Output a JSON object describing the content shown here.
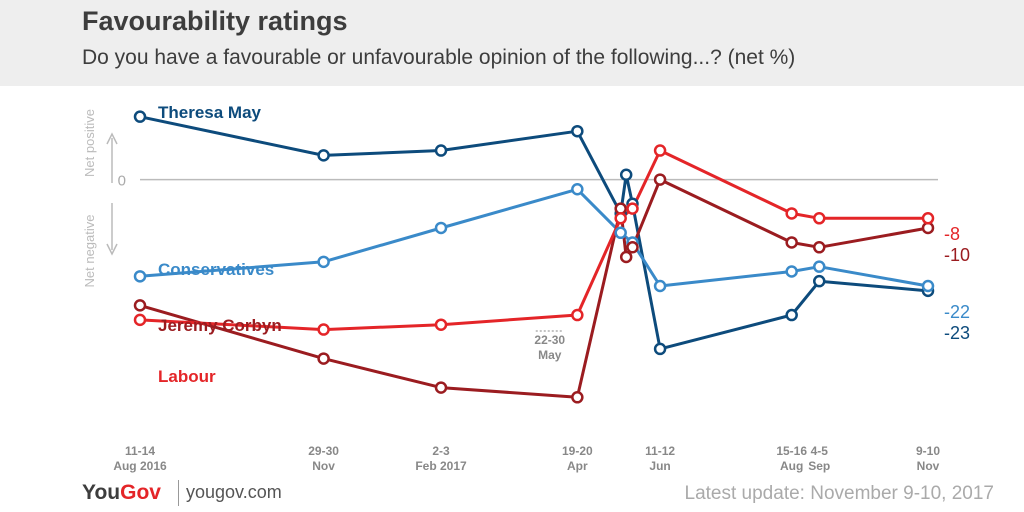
{
  "title": "Favourability ratings",
  "subtitle": "Do you have a favourable or unfavourable opinion of the following...? (net %)",
  "axis_labels": {
    "positive": "Net positive",
    "negative": "Net negative",
    "zero": "0"
  },
  "footer": {
    "brand_you": "You",
    "brand_gov": "Gov",
    "site": "yougov.com",
    "update": "Latest update: November 9-10, 2017"
  },
  "colors": {
    "theresa_may": "#0d4b7c",
    "conservatives": "#3a8ac9",
    "jeremy_corbyn": "#9b1c20",
    "labour": "#e42528",
    "axis": "#bbbbbb"
  },
  "chart_data": {
    "type": "line",
    "ylabel": "",
    "ylim": [
      -53,
      15
    ],
    "grid": false,
    "legend": "inline labels at left",
    "annotations": [
      {
        "lines": [
          "22-30",
          "May"
        ],
        "x": 0.52
      }
    ],
    "x_ticks": [
      {
        "lines": [
          "11-14",
          "Aug 2016"
        ],
        "x": 0
      },
      {
        "lines": [
          "29-30",
          "Nov"
        ],
        "x": 0.233
      },
      {
        "lines": [
          "2-3",
          "Feb 2017"
        ],
        "x": 0.382
      },
      {
        "lines": [
          "19-20",
          "Apr"
        ],
        "x": 0.555
      },
      {
        "lines": [
          "11-12",
          "Jun"
        ],
        "x": 0.66
      },
      {
        "lines": [
          "15-16",
          "Aug"
        ],
        "x": 0.827
      },
      {
        "lines": [
          "4-5",
          "Sep"
        ],
        "x": 0.862
      },
      {
        "lines": [
          "9-10",
          "Nov"
        ],
        "x": 1
      }
    ],
    "series": [
      {
        "key": "theresa_may",
        "name": "Theresa May",
        "end_label": "-23",
        "points": [
          [
            0,
            13
          ],
          [
            0.233,
            5
          ],
          [
            0.382,
            6
          ],
          [
            0.555,
            10
          ],
          [
            0.61,
            -7
          ],
          [
            0.617,
            1
          ],
          [
            0.625,
            -5
          ],
          [
            0.66,
            -35
          ],
          [
            0.827,
            -28
          ],
          [
            0.862,
            -21
          ],
          [
            1,
            -23
          ]
        ]
      },
      {
        "key": "conservatives",
        "name": "Conservatives",
        "end_label": "-22",
        "points": [
          [
            0,
            -20
          ],
          [
            0.233,
            -17
          ],
          [
            0.382,
            -10
          ],
          [
            0.555,
            -2
          ],
          [
            0.61,
            -11
          ],
          [
            0.625,
            -13
          ],
          [
            0.66,
            -22
          ],
          [
            0.827,
            -19
          ],
          [
            0.862,
            -18
          ],
          [
            1,
            -22
          ]
        ]
      },
      {
        "key": "jeremy_corbyn",
        "name": "Jeremy Corbyn",
        "end_label": "-10",
        "points": [
          [
            0,
            -26
          ],
          [
            0.233,
            -37
          ],
          [
            0.382,
            -43
          ],
          [
            0.555,
            -45
          ],
          [
            0.61,
            -6
          ],
          [
            0.617,
            -16
          ],
          [
            0.625,
            -14
          ],
          [
            0.66,
            0
          ],
          [
            0.827,
            -13
          ],
          [
            0.862,
            -14
          ],
          [
            1,
            -10
          ]
        ]
      },
      {
        "key": "labour",
        "name": "Labour",
        "end_label": "-8",
        "points": [
          [
            0,
            -29
          ],
          [
            0.233,
            -31
          ],
          [
            0.382,
            -30
          ],
          [
            0.555,
            -28
          ],
          [
            0.61,
            -8
          ],
          [
            0.625,
            -6
          ],
          [
            0.66,
            6
          ],
          [
            0.827,
            -7
          ],
          [
            0.862,
            -8
          ],
          [
            1,
            -8
          ]
        ]
      }
    ]
  }
}
